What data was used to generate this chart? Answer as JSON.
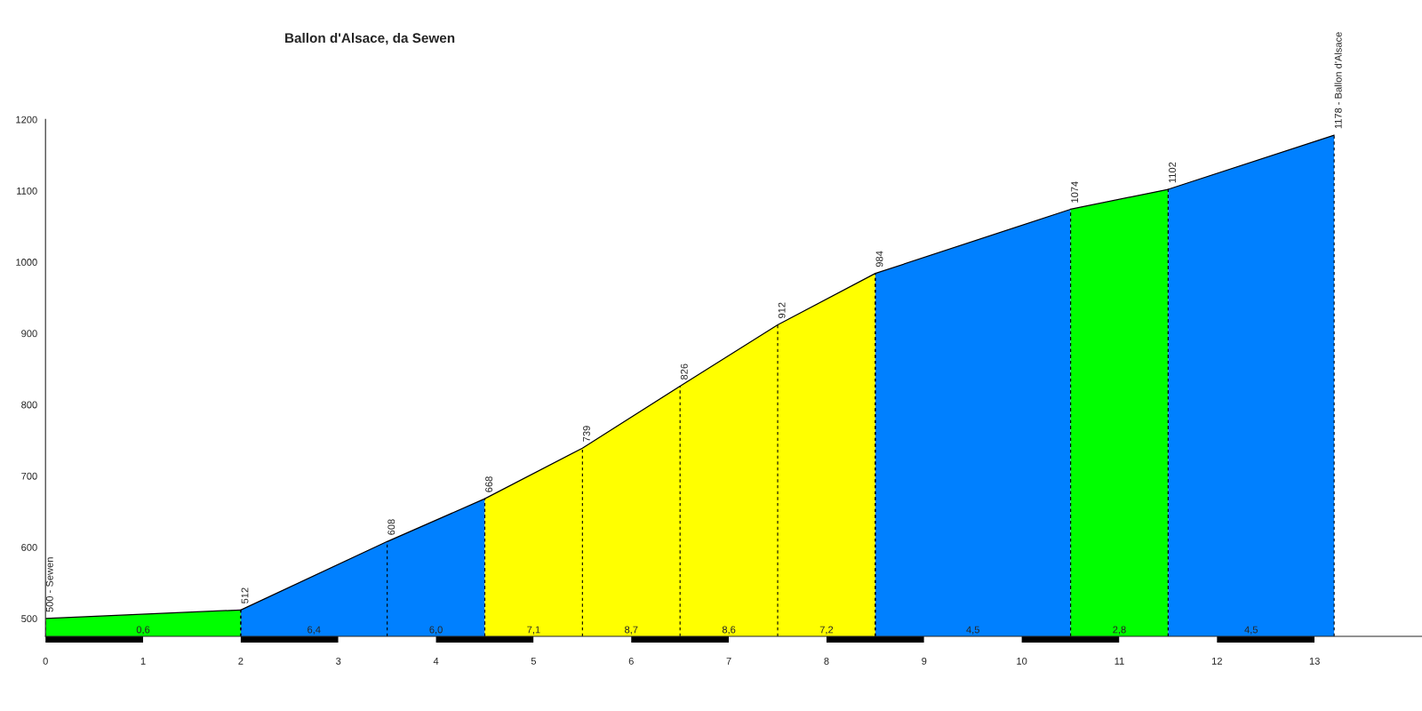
{
  "chart_data": {
    "type": "area",
    "title": "Ballon d'Alsace, da Sewen",
    "series": [
      {
        "color": "#00ff00",
        "x": [
          0,
          2
        ],
        "values": [
          500,
          512
        ]
      },
      {
        "color": "#0080ff",
        "x": [
          2,
          3.5,
          4.5
        ],
        "values": [
          512,
          608,
          668
        ]
      },
      {
        "color": "#ffff00",
        "x": [
          4.5,
          5.5,
          6.5,
          7.5,
          8.5
        ],
        "values": [
          668,
          739,
          826,
          912,
          984
        ]
      },
      {
        "color": "#0080ff",
        "x": [
          8.5,
          10.5
        ],
        "values": [
          984,
          1074
        ]
      },
      {
        "color": "#00ff00",
        "x": [
          10.5,
          11.5
        ],
        "values": [
          1074,
          1102
        ]
      },
      {
        "color": "#0080ff",
        "x": [
          11.5,
          13.2
        ],
        "values": [
          1102,
          1178
        ]
      }
    ],
    "xlim": [
      0,
      14.1
    ],
    "ylim": [
      475,
      1200
    ],
    "xticks": [
      0,
      1,
      2,
      3,
      4,
      5,
      6,
      7,
      8,
      9,
      10,
      11,
      12,
      13
    ],
    "yticks": [
      500,
      600,
      700,
      800,
      900,
      1000,
      1100,
      1200
    ],
    "grid": false,
    "legend": false,
    "annotations": [
      {
        "text": "500 - Sewen",
        "x": 0,
        "y": 500
      },
      {
        "text": "512",
        "x": 2,
        "y": 512
      },
      {
        "text": "608",
        "x": 3.5,
        "y": 608
      },
      {
        "text": "668",
        "x": 4.5,
        "y": 668
      },
      {
        "text": "739",
        "x": 5.5,
        "y": 739
      },
      {
        "text": "826",
        "x": 6.5,
        "y": 826
      },
      {
        "text": "912",
        "x": 7.5,
        "y": 912
      },
      {
        "text": "984",
        "x": 8.5,
        "y": 984
      },
      {
        "text": "1074",
        "x": 10.5,
        "y": 1074
      },
      {
        "text": "1102",
        "x": 11.5,
        "y": 1102
      },
      {
        "text": "1178 - Ballon d'Alsace",
        "x": 13.2,
        "y": 1178
      },
      "0,6",
      "6,4",
      "6,0",
      "7,1",
      "8,7",
      "8,6",
      "7,2",
      "4,5",
      "2,8",
      "4,5"
    ]
  }
}
